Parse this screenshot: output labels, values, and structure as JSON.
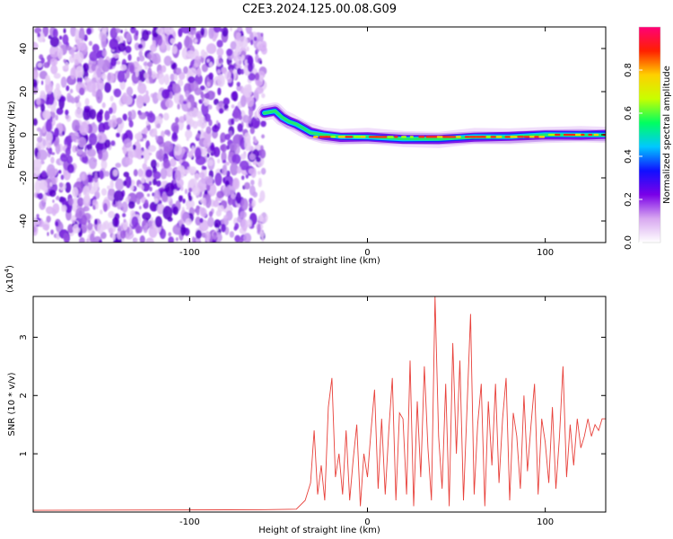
{
  "title": "C2E3.2024.125.00.08.G09",
  "chart_data": [
    {
      "type": "heatmap",
      "xlabel": "Height of straight line (km)",
      "ylabel": "Frequency (Hz)",
      "xlim": [
        -188,
        134
      ],
      "ylim": [
        -50,
        50
      ],
      "xticks": [
        -100,
        0,
        100
      ],
      "yticks": [
        -40,
        -20,
        0,
        20,
        40
      ],
      "noise_region_x": [
        -188,
        -60
      ],
      "ridge": [
        {
          "x": -58,
          "y": 10
        },
        {
          "x": -52,
          "y": 11
        },
        {
          "x": -48,
          "y": 8
        },
        {
          "x": -44,
          "y": 6
        },
        {
          "x": -40,
          "y": 5
        },
        {
          "x": -36,
          "y": 3
        },
        {
          "x": -32,
          "y": 1
        },
        {
          "x": -25,
          "y": 0
        },
        {
          "x": -15,
          "y": -1
        },
        {
          "x": 0,
          "y": -1
        },
        {
          "x": 20,
          "y": -2
        },
        {
          "x": 40,
          "y": -2
        },
        {
          "x": 60,
          "y": -1
        },
        {
          "x": 80,
          "y": -1
        },
        {
          "x": 100,
          "y": 0
        },
        {
          "x": 120,
          "y": 0
        },
        {
          "x": 134,
          "y": 0
        }
      ],
      "grid": false
    },
    {
      "type": "colorbar",
      "label": "Normalized spectral amplitude",
      "range": [
        0,
        1
      ],
      "ticks": [
        "0.0",
        "0.2",
        "0.4",
        "0.6",
        "0.8"
      ],
      "tick_values": [
        0.0,
        0.2,
        0.4,
        0.6,
        0.8
      ],
      "colors": [
        "#ffffff",
        "#d8a8f0",
        "#7a00e8",
        "#1010ff",
        "#00c8ff",
        "#00ff60",
        "#c8ff00",
        "#ffd000",
        "#ff2000",
        "#ff0078"
      ]
    },
    {
      "type": "line",
      "xlabel": "Height of straight line (km)",
      "ylabel": "SNR (10 * v/v)",
      "scale_label": "(x10",
      "scale_exp": "4",
      "xlim": [
        -188,
        134
      ],
      "ylim": [
        0,
        3.7
      ],
      "xticks": [
        -100,
        0,
        100
      ],
      "yticks": [
        1,
        2,
        3
      ],
      "color": "#e8403a",
      "series": [
        {
          "x": [
            -188,
            -60,
            -40,
            -35,
            -33,
            -32,
            -30,
            -28,
            -26,
            -24,
            -22,
            -20,
            -18,
            -16,
            -14,
            -12,
            -10,
            -8,
            -6,
            -4,
            -2,
            0,
            2,
            4,
            6,
            8,
            10,
            12,
            14,
            16,
            18,
            20,
            22,
            24,
            26,
            28,
            30,
            32,
            34,
            36,
            38,
            40,
            42,
            44,
            46,
            48,
            50,
            52,
            54,
            56,
            58,
            60,
            62,
            64,
            66,
            68,
            70,
            72,
            74,
            76,
            78,
            80,
            82,
            84,
            86,
            88,
            90,
            92,
            94,
            96,
            98,
            100,
            102,
            104,
            106,
            108,
            110,
            112,
            114,
            116,
            118,
            120,
            122,
            124,
            126,
            128,
            130,
            132,
            134
          ],
          "values": [
            0.03,
            0.04,
            0.05,
            0.2,
            0.4,
            0.5,
            1.4,
            0.3,
            0.8,
            0.2,
            1.8,
            2.3,
            0.6,
            1.0,
            0.3,
            1.4,
            0.2,
            0.9,
            1.5,
            0.1,
            1.0,
            0.6,
            1.4,
            2.1,
            0.4,
            1.6,
            0.3,
            1.4,
            2.3,
            0.2,
            1.7,
            1.6,
            0.3,
            2.6,
            0.1,
            1.9,
            0.6,
            2.5,
            1.1,
            0.2,
            3.7,
            1.3,
            0.4,
            2.2,
            0.1,
            2.9,
            1.0,
            2.6,
            0.2,
            1.8,
            3.4,
            0.3,
            1.5,
            2.2,
            0.1,
            1.9,
            0.8,
            2.2,
            0.5,
            1.6,
            2.3,
            0.2,
            1.7,
            1.3,
            0.4,
            2.0,
            0.7,
            1.5,
            2.2,
            0.3,
            1.6,
            1.2,
            0.5,
            1.8,
            0.4,
            1.3,
            2.5,
            0.6,
            1.5,
            0.8,
            1.6,
            1.1,
            1.3,
            1.6,
            1.3,
            1.5,
            1.4,
            1.6,
            1.6
          ]
        }
      ],
      "grid": false
    }
  ]
}
